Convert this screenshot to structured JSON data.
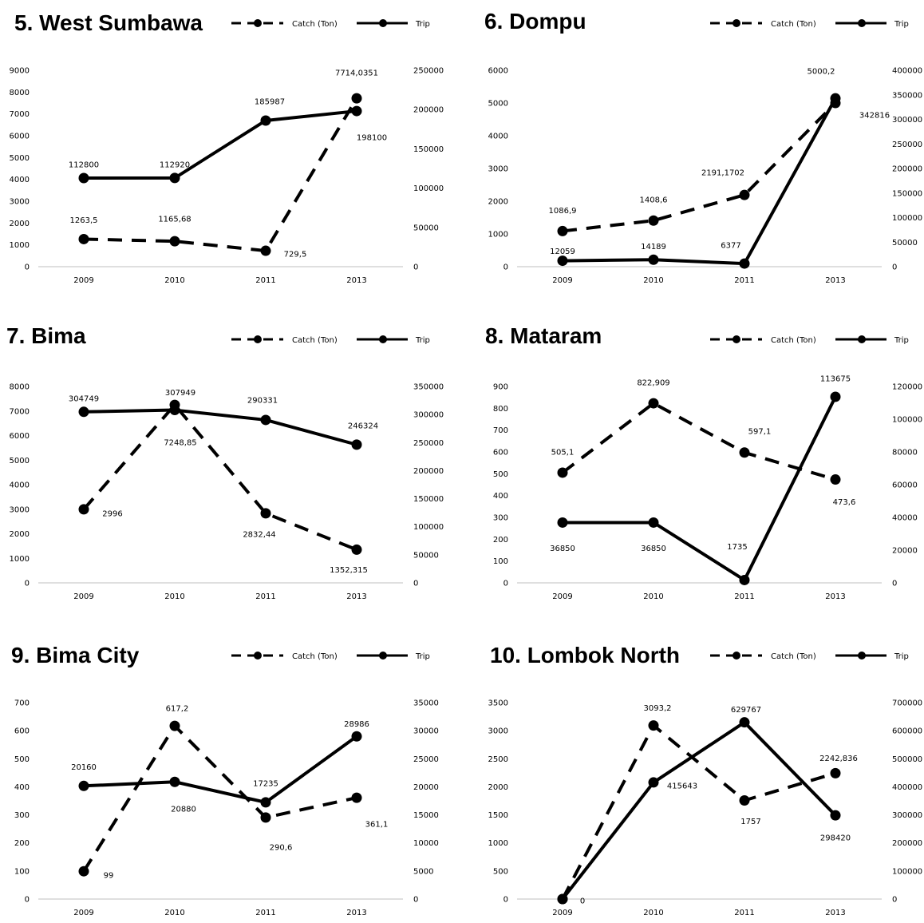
{
  "colors": {
    "series": "#000000",
    "axis": "#bfbfbf",
    "background": "#ffffff"
  },
  "chart_data": [
    {
      "type": "line",
      "title": "5. West Sumbawa",
      "categories": [
        "2009",
        "2010",
        "2011",
        "2013"
      ],
      "legend": {
        "position": "top-right",
        "entries": [
          "Catch (Ton)",
          "Trip"
        ]
      },
      "yaxis_left": {
        "ylim": [
          0,
          9000
        ],
        "ticks": [
          "0",
          "1000",
          "2000",
          "3000",
          "4000",
          "5000",
          "6000",
          "7000",
          "8000",
          "9000"
        ]
      },
      "yaxis_right": {
        "ylim": [
          0,
          250000
        ],
        "ticks": [
          "0",
          "50000",
          "100000",
          "150000",
          "200000",
          "250000"
        ]
      },
      "series": [
        {
          "name": "Catch (Ton)",
          "style": "dashed",
          "axis": "left",
          "values": [
            1263.5,
            1165.68,
            729.5,
            7714.0351
          ],
          "labels": [
            "1263,5",
            "1165,68",
            "729,5",
            "7714,0351"
          ]
        },
        {
          "name": "Trip",
          "style": "solid",
          "axis": "right",
          "values": [
            112800,
            112920,
            185987,
            198100
          ],
          "labels": [
            "112800",
            "112920",
            "185987",
            "198100"
          ]
        }
      ]
    },
    {
      "type": "line",
      "title": "6. Dompu",
      "categories": [
        "2009",
        "2010",
        "2011",
        "2013"
      ],
      "legend": {
        "position": "top-right",
        "entries": [
          "Catch (Ton)",
          "Trip"
        ]
      },
      "yaxis_left": {
        "ylim": [
          0,
          6000
        ],
        "ticks": [
          "0",
          "1000",
          "2000",
          "3000",
          "4000",
          "5000",
          "6000"
        ]
      },
      "yaxis_right": {
        "ylim": [
          0,
          400000
        ],
        "ticks": [
          "0",
          "50000",
          "100000",
          "150000",
          "200000",
          "250000",
          "300000",
          "350000",
          "400000"
        ]
      },
      "series": [
        {
          "name": "Catch (Ton)",
          "style": "dashed",
          "axis": "left",
          "values": [
            1086.9,
            1408.6,
            2191.1702,
            5000.2
          ],
          "labels": [
            "1086,9",
            "1408,6",
            "2191,1702",
            "5000,2"
          ]
        },
        {
          "name": "Trip",
          "style": "solid",
          "axis": "right",
          "values": [
            12059,
            14189,
            6377,
            342816
          ],
          "labels": [
            "12059",
            "14189",
            "6377",
            "342816"
          ]
        }
      ]
    },
    {
      "type": "line",
      "title": "7. Bima",
      "categories": [
        "2009",
        "2010",
        "2011",
        "2013"
      ],
      "legend": {
        "position": "top-right",
        "entries": [
          "Catch (Ton)",
          "Trip"
        ]
      },
      "yaxis_left": {
        "ylim": [
          0,
          8000
        ],
        "ticks": [
          "0",
          "1000",
          "2000",
          "3000",
          "4000",
          "5000",
          "6000",
          "7000",
          "8000"
        ]
      },
      "yaxis_right": {
        "ylim": [
          0,
          350000
        ],
        "ticks": [
          "0",
          "50000",
          "100000",
          "150000",
          "200000",
          "250000",
          "300000",
          "350000"
        ]
      },
      "series": [
        {
          "name": "Catch (Ton)",
          "style": "dashed",
          "axis": "left",
          "values": [
            2996,
            7248.85,
            2832.44,
            1352.315
          ],
          "labels": [
            "2996",
            "7248,85",
            "2832,44",
            "1352,315"
          ]
        },
        {
          "name": "Trip",
          "style": "solid",
          "axis": "right",
          "values": [
            304749,
            307949,
            290331,
            246324
          ],
          "labels": [
            "304749",
            "307949",
            "290331",
            "246324"
          ]
        }
      ]
    },
    {
      "type": "line",
      "title": "8. Mataram",
      "categories": [
        "2009",
        "2010",
        "2011",
        "2013"
      ],
      "legend": {
        "position": "top-right",
        "entries": [
          "Catch (Ton)",
          "Trip"
        ]
      },
      "yaxis_left": {
        "ylim": [
          0,
          900
        ],
        "ticks": [
          "0",
          "100",
          "200",
          "300",
          "400",
          "500",
          "600",
          "700",
          "800",
          "900"
        ]
      },
      "yaxis_right": {
        "ylim": [
          0,
          120000
        ],
        "ticks": [
          "0",
          "20000",
          "40000",
          "60000",
          "80000",
          "100000",
          "120000"
        ]
      },
      "series": [
        {
          "name": "Catch (Ton)",
          "style": "dashed",
          "axis": "left",
          "values": [
            505.1,
            822.909,
            597.1,
            473.6
          ],
          "labels": [
            "505,1",
            "822,909",
            "597,1",
            "473,6"
          ]
        },
        {
          "name": "Trip",
          "style": "solid",
          "axis": "right",
          "values": [
            36850,
            36850,
            1735,
            113675
          ],
          "labels": [
            "36850",
            "36850",
            "1735",
            "113675"
          ]
        }
      ]
    },
    {
      "type": "line",
      "title": "9. Bima City",
      "categories": [
        "2009",
        "2010",
        "2011",
        "2013"
      ],
      "legend": {
        "position": "top-right",
        "entries": [
          "Catch (Ton)",
          "Trip"
        ]
      },
      "yaxis_left": {
        "ylim": [
          0,
          700
        ],
        "ticks": [
          "0",
          "100",
          "200",
          "300",
          "400",
          "500",
          "600",
          "700"
        ]
      },
      "yaxis_right": {
        "ylim": [
          0,
          35000
        ],
        "ticks": [
          "0",
          "5000",
          "10000",
          "15000",
          "20000",
          "25000",
          "30000",
          "35000"
        ]
      },
      "series": [
        {
          "name": "Catch (Ton)",
          "style": "dashed",
          "axis": "left",
          "values": [
            99,
            617.2,
            290.6,
            361.1
          ],
          "labels": [
            "99",
            "617,2",
            "290,6",
            "361,1"
          ]
        },
        {
          "name": "Trip",
          "style": "solid",
          "axis": "right",
          "values": [
            20160,
            20880,
            17235,
            28986
          ],
          "labels": [
            "20160",
            "20880",
            "17235",
            "28986"
          ]
        }
      ]
    },
    {
      "type": "line",
      "title": "10. Lombok North",
      "categories": [
        "2009",
        "2010",
        "2011",
        "2013"
      ],
      "legend": {
        "position": "top-right",
        "entries": [
          "Catch (Ton)",
          "Trip"
        ]
      },
      "yaxis_left": {
        "ylim": [
          0,
          3500
        ],
        "ticks": [
          "0",
          "500",
          "1000",
          "1500",
          "2000",
          "2500",
          "3000",
          "3500"
        ]
      },
      "yaxis_right": {
        "ylim": [
          0,
          700000
        ],
        "ticks": [
          "0",
          "100000",
          "200000",
          "300000",
          "400000",
          "500000",
          "600000",
          "700000"
        ]
      },
      "series": [
        {
          "name": "Catch (Ton)",
          "style": "dashed",
          "axis": "left",
          "values": [
            0,
            3093.2,
            1757,
            2242.836
          ],
          "labels": [
            "0",
            "3093,2",
            "1757",
            "2242,836"
          ]
        },
        {
          "name": "Trip",
          "style": "solid",
          "axis": "right",
          "values": [
            0,
            415643,
            629767,
            298420
          ],
          "labels": [
            "",
            "415643",
            "629767",
            "298420"
          ]
        }
      ]
    }
  ]
}
